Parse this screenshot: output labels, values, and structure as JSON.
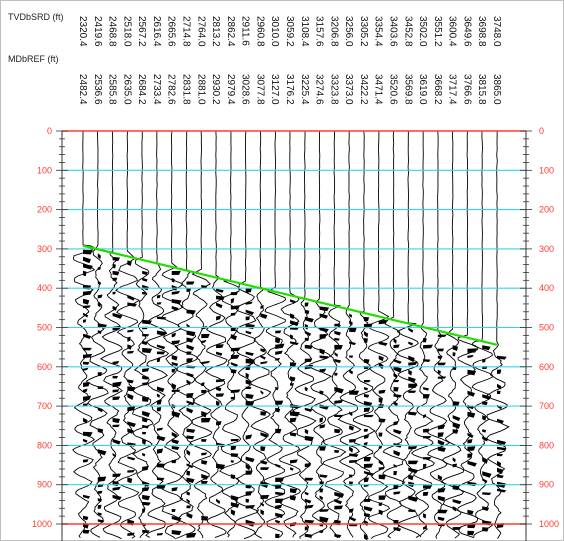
{
  "chart_data": {
    "type": "line",
    "title": "",
    "header_rows": [
      {
        "name": "TVDbSRD (ft)"
      },
      {
        "name": "MDbREF (ft)"
      }
    ],
    "tvd_values": [
      "2320.4",
      "2419.6",
      "2468.8",
      "2518.0",
      "2567.2",
      "2616.4",
      "2665.6",
      "2714.8",
      "2764.0",
      "2813.2",
      "2862.4",
      "2911.6",
      "2960.8",
      "3010.0",
      "3059.2",
      "3108.4",
      "3157.6",
      "3206.8",
      "3256.0",
      "3305.2",
      "3354.4",
      "3403.6",
      "3452.8",
      "3502.0",
      "3551.2",
      "3600.4",
      "3649.6",
      "3698.8",
      "3748.0"
    ],
    "md_values": [
      "2482.4",
      "2536.6",
      "2585.8",
      "2635.0",
      "2684.2",
      "2733.4",
      "2782.6",
      "2831.8",
      "2881.0",
      "2930.2",
      "2979.4",
      "3028.6",
      "3077.8",
      "3127.0",
      "3176.2",
      "3225.4",
      "3274.6",
      "3323.8",
      "3373.0",
      "3422.2",
      "3471.4",
      "3520.6",
      "3569.8",
      "3619.0",
      "3668.2",
      "3717.4",
      "3766.6",
      "3815.8",
      "3865.0"
    ],
    "y_ticks": [
      "0",
      "100",
      "200",
      "300",
      "400",
      "500",
      "600",
      "700",
      "800",
      "900",
      "1000"
    ],
    "ylim": [
      0,
      1000
    ],
    "y_inverted": true,
    "grid": true,
    "colors": {
      "minor_grid": "#33d6e6",
      "boundary": "#ff3b30",
      "traces": "#000000",
      "pick_line": "#22dd00"
    },
    "series": [
      {
        "type": "first-break-pick",
        "x_trace_index": [
          0,
          28
        ],
        "values": [
          292,
          544
        ]
      }
    ]
  }
}
